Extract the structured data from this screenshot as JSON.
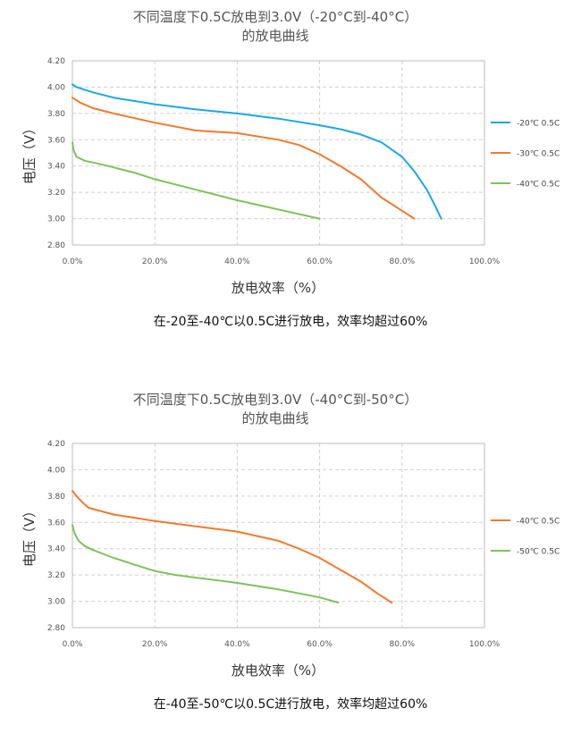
{
  "chart_data": [
    {
      "type": "line",
      "title": [
        "不同温度下0.5C放电到3.0V（-20°C到-40°C）",
        "的放电曲线"
      ],
      "xlabel": "放电效率（%）",
      "ylabel": "电压（V）",
      "xlim": [
        0,
        100
      ],
      "ylim": [
        2.8,
        4.2
      ],
      "xticks": [
        "0.0%",
        "20.0%",
        "40.0%",
        "60.0%",
        "80.0%",
        "100.0%"
      ],
      "yticks": [
        "2.80",
        "3.00",
        "3.20",
        "3.40",
        "3.60",
        "3.80",
        "4.00",
        "4.20"
      ],
      "grid": true,
      "legend_position": "right",
      "series": [
        {
          "name": "-20℃ 0.5C",
          "color": "#1ea6e8",
          "x": [
            0,
            1,
            5,
            10,
            20,
            30,
            40,
            50,
            60,
            65,
            70,
            75,
            80,
            83,
            86,
            88,
            89.5
          ],
          "y": [
            4.02,
            4.0,
            3.96,
            3.92,
            3.87,
            3.83,
            3.8,
            3.76,
            3.71,
            3.68,
            3.64,
            3.58,
            3.47,
            3.36,
            3.22,
            3.1,
            3.0
          ]
        },
        {
          "name": "-30℃ 0.5C",
          "color": "#ef7a2e",
          "x": [
            0,
            2,
            5,
            10,
            20,
            30,
            40,
            50,
            55,
            60,
            65,
            70,
            75,
            80,
            83
          ],
          "y": [
            3.92,
            3.88,
            3.84,
            3.8,
            3.73,
            3.67,
            3.65,
            3.6,
            3.56,
            3.49,
            3.4,
            3.3,
            3.16,
            3.06,
            3.0
          ]
        },
        {
          "name": "-40℃ 0.5C",
          "color": "#7dc25a",
          "x": [
            0,
            0.3,
            1,
            3,
            6,
            10,
            15,
            20,
            25,
            30,
            40,
            50,
            60
          ],
          "y": [
            3.58,
            3.52,
            3.47,
            3.44,
            3.42,
            3.39,
            3.35,
            3.3,
            3.26,
            3.22,
            3.14,
            3.07,
            3.0
          ]
        }
      ]
    },
    {
      "type": "line",
      "title": [
        "不同温度下0.5C放电到3.0V（-40°C到-50°C）",
        "的放电曲线"
      ],
      "xlabel": "放电效率（%）",
      "ylabel": "电压（V）",
      "xlim": [
        0,
        100
      ],
      "ylim": [
        2.8,
        4.2
      ],
      "xticks": [
        "0.0%",
        "20.0%",
        "40.0%",
        "60.0%",
        "80.0%",
        "100.0%"
      ],
      "yticks": [
        "2.80",
        "3.00",
        "3.20",
        "3.40",
        "3.60",
        "3.80",
        "4.00",
        "4.20"
      ],
      "grid": true,
      "legend_position": "right",
      "series": [
        {
          "name": "-40℃ 0.5C",
          "color": "#ef7a2e",
          "x": [
            0,
            1,
            2.5,
            4,
            10,
            20,
            30,
            40,
            50,
            55,
            60,
            65,
            70,
            74,
            77.5
          ],
          "y": [
            3.84,
            3.8,
            3.75,
            3.71,
            3.66,
            3.61,
            3.57,
            3.53,
            3.46,
            3.4,
            3.33,
            3.24,
            3.15,
            3.06,
            2.99
          ]
        },
        {
          "name": "-50℃ 0.5C",
          "color": "#7dc25a",
          "x": [
            0,
            0.5,
            1.5,
            3,
            5,
            10,
            15,
            20,
            25,
            30,
            40,
            50,
            55,
            60,
            64.5
          ],
          "y": [
            3.58,
            3.52,
            3.46,
            3.42,
            3.39,
            3.33,
            3.28,
            3.23,
            3.2,
            3.18,
            3.14,
            3.09,
            3.06,
            3.03,
            2.99
          ]
        }
      ]
    }
  ],
  "captions": [
    "在-20至-40℃以0.5C进行放电，效率均超过60%",
    "在-40至-50℃以0.5C进行放电，效率均超过60%"
  ]
}
